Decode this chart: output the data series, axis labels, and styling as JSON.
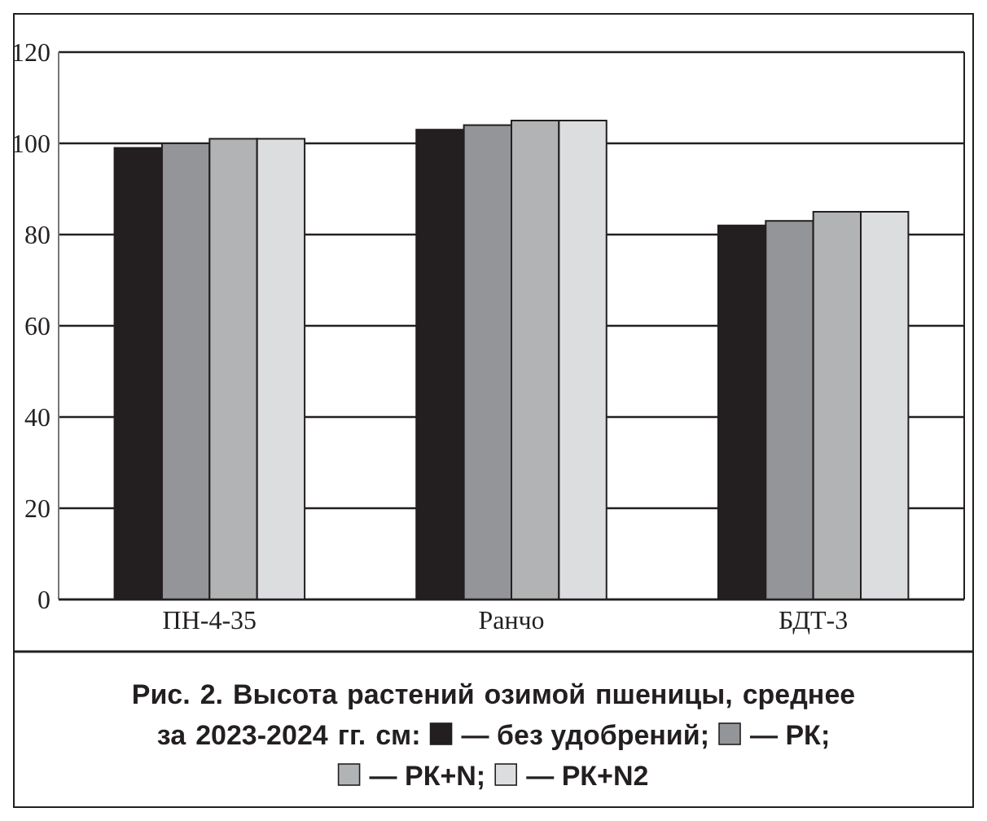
{
  "chart_data": {
    "type": "bar",
    "title": "Рис. 2. Высота растений озимой пшеницы, среднее за 2023-2024 гг. см:",
    "categories": [
      "ПН-4-35",
      "Ранчо",
      "БДТ-3"
    ],
    "series": [
      {
        "name": "— без удобрений;",
        "color": "#231f20",
        "values": [
          99,
          103,
          82
        ]
      },
      {
        "name": "— РК;",
        "color": "#939598",
        "values": [
          100,
          104,
          83
        ]
      },
      {
        "name": "— РК+N;",
        "color": "#b1b3b5",
        "values": [
          101,
          105,
          85
        ]
      },
      {
        "name": "— РК+N2",
        "color": "#dcddde",
        "values": [
          101,
          105,
          85
        ]
      }
    ],
    "ylim": [
      0,
      120
    ],
    "yticks": [
      0,
      20,
      40,
      60,
      80,
      100,
      120
    ],
    "grid": "y",
    "legend": "bottom"
  }
}
